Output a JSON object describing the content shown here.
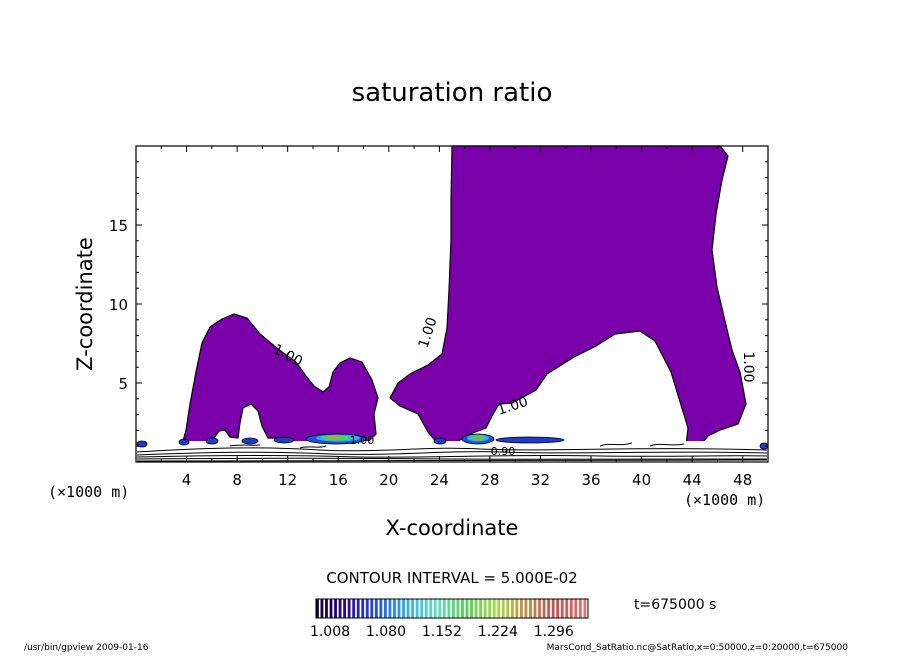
{
  "chart_data": {
    "type": "contour",
    "title": "saturation ratio",
    "xlabel": "X-coordinate",
    "ylabel": "Z-coordinate",
    "x_unit": "(×1000 m)",
    "y_unit": "(×1000 m)",
    "xlim": [
      0,
      50
    ],
    "ylim": [
      0,
      20
    ],
    "x_ticks": [
      "4",
      "8",
      "12",
      "16",
      "20",
      "24",
      "28",
      "32",
      "36",
      "40",
      "44",
      "48"
    ],
    "y_ticks": [
      "5",
      "10",
      "15"
    ],
    "contour_interval_label": "CONTOUR INTERVAL = 5.000E-02",
    "contour_labels": [
      "1.00",
      "1.00",
      "1.00",
      "1.00",
      "1.00",
      "0.90"
    ],
    "colorbar_ticks": [
      "1.008",
      "1.080",
      "1.152",
      "1.224",
      "1.296"
    ],
    "colors": {
      "fill": "#7a00aa",
      "colorbar": [
        "#0a0030",
        "#2a0a9a",
        "#1e50e0",
        "#30b0e8",
        "#60e0c0",
        "#50d050",
        "#a0e040",
        "#c09040",
        "#c05050",
        "#e87070"
      ]
    },
    "time_label": "t=675000 s",
    "footer_left": "/usr/bin/gpview   2009-01-16",
    "footer_right": "MarsCond_SatRatio.nc@SatRatio,x=0:50000,z=0:20000,t=675000"
  }
}
